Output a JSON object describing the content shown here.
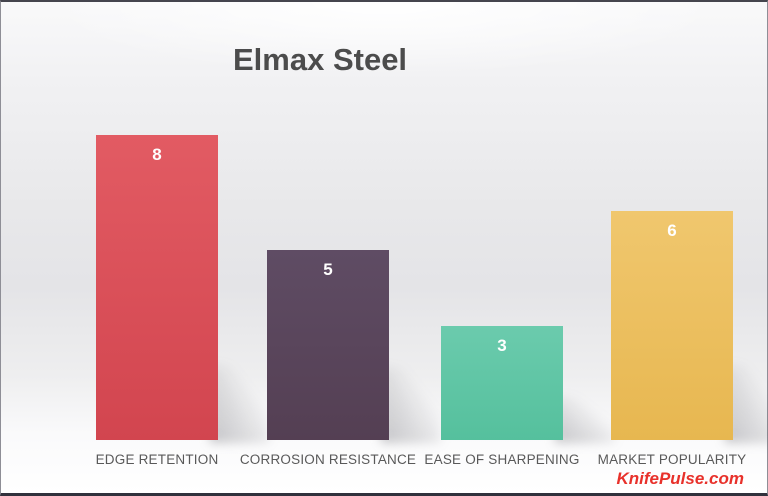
{
  "watermark": {
    "text": "KnifePulse.com",
    "color": "#e8312b"
  },
  "chart_data": {
    "type": "bar",
    "title": "Elmax Steel",
    "title_color": "#4c4c4c",
    "categories": [
      "EDGE RETENTION",
      "CORROSION RESISTANCE",
      "EASE OF SHARPENING",
      "MARKET POPULARITY"
    ],
    "values": [
      8,
      5,
      3,
      6
    ],
    "ylim": [
      0,
      8
    ],
    "grid": false,
    "legend": "none",
    "value_labels_shown": true,
    "value_label_color": "#ffffff",
    "category_label_color": "#595959",
    "bar_fills": [
      {
        "top": "#e25b63",
        "bottom": "#d2454f"
      },
      {
        "top": "#5f4c64",
        "bottom": "#543f53"
      },
      {
        "top": "#6bcbad",
        "bottom": "#55c09d"
      },
      {
        "top": "#f0c76e",
        "bottom": "#e7b750"
      }
    ]
  }
}
